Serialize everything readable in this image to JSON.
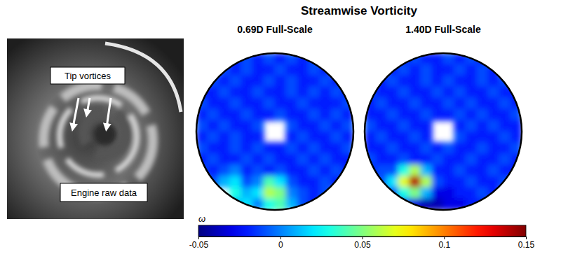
{
  "title": "Streamwise Vorticity",
  "photo": {
    "labels": [
      "Tip vortices",
      "Engine raw data"
    ]
  },
  "colorbar": {
    "label": "ω",
    "range": [
      -0.05,
      0.15
    ],
    "ticks": [
      -0.05,
      0,
      0.05,
      0.1,
      0.15
    ]
  },
  "chart_data": [
    {
      "type": "heatmap",
      "title": "0.69D Full-Scale",
      "cells": [
        [
          null,
          null,
          null,
          -0.02,
          -0.01,
          -0.02,
          -0.01,
          -0.02,
          -0.01,
          -0.02,
          -0.01,
          null,
          null,
          null
        ],
        [
          null,
          null,
          -0.01,
          -0.02,
          -0.01,
          -0.02,
          -0.02,
          -0.01,
          -0.02,
          -0.02,
          -0.01,
          -0.02,
          null,
          null
        ],
        [
          null,
          -0.01,
          -0.02,
          -0.01,
          -0.02,
          -0.02,
          -0.01,
          -0.02,
          -0.01,
          -0.02,
          -0.02,
          -0.01,
          -0.02,
          null
        ],
        [
          -0.02,
          -0.02,
          -0.01,
          -0.02,
          -0.02,
          -0.01,
          -0.02,
          -0.02,
          -0.01,
          -0.02,
          -0.01,
          -0.02,
          -0.01,
          -0.02
        ],
        [
          -0.01,
          -0.02,
          -0.02,
          -0.01,
          -0.02,
          -0.02,
          -0.01,
          -0.02,
          -0.02,
          -0.01,
          -0.02,
          -0.02,
          -0.02,
          -0.01
        ],
        [
          -0.02,
          -0.01,
          -0.02,
          -0.02,
          -0.01,
          -0.02,
          -0.02,
          -0.01,
          -0.02,
          -0.02,
          -0.01,
          -0.02,
          -0.01,
          -0.02
        ],
        [
          -0.01,
          -0.02,
          -0.01,
          -0.02,
          -0.02,
          -0.01,
          null,
          null,
          -0.01,
          -0.02,
          -0.02,
          -0.01,
          -0.02,
          -0.01
        ],
        [
          -0.02,
          -0.01,
          -0.02,
          -0.01,
          -0.02,
          -0.02,
          null,
          null,
          -0.02,
          -0.01,
          -0.02,
          -0.02,
          -0.01,
          -0.02
        ],
        [
          -0.01,
          -0.02,
          -0.02,
          -0.01,
          -0.02,
          -0.01,
          -0.02,
          -0.02,
          -0.01,
          -0.02,
          -0.01,
          -0.02,
          -0.02,
          -0.01
        ],
        [
          -0.02,
          -0.01,
          -0.02,
          -0.02,
          -0.01,
          -0.02,
          -0.01,
          -0.02,
          -0.02,
          -0.01,
          -0.02,
          -0.01,
          -0.02,
          -0.02
        ],
        [
          -0.01,
          -0.02,
          -0.01,
          0,
          -0.02,
          -0.01,
          -0.02,
          -0.01,
          -0.02,
          -0.02,
          -0.01,
          -0.02,
          -0.01,
          -0.02
        ],
        [
          null,
          -0.01,
          0.01,
          0.02,
          -0.01,
          0,
          0.04,
          0.02,
          -0.01,
          -0.02,
          -0.02,
          -0.01,
          -0.02,
          null
        ],
        [
          null,
          null,
          null,
          0.03,
          0.01,
          0.02,
          0.06,
          0.05,
          0,
          -0.01,
          -0.02,
          -0.01,
          null,
          null
        ],
        [
          null,
          null,
          null,
          0.01,
          0.02,
          0,
          0.03,
          0.04,
          0.01,
          -0.01,
          -0.02,
          null,
          null,
          null
        ]
      ]
    },
    {
      "type": "heatmap",
      "title": "1.40D Full-Scale",
      "cells": [
        [
          null,
          null,
          null,
          -0.02,
          -0.01,
          -0.02,
          -0.02,
          -0.01,
          -0.02,
          -0.01,
          -0.02,
          null,
          null,
          null
        ],
        [
          null,
          null,
          -0.02,
          -0.01,
          -0.02,
          -0.01,
          -0.02,
          -0.02,
          -0.01,
          -0.02,
          -0.01,
          -0.02,
          null,
          null
        ],
        [
          null,
          -0.02,
          -0.01,
          -0.02,
          -0.02,
          -0.01,
          -0.02,
          -0.01,
          -0.02,
          -0.02,
          -0.01,
          -0.02,
          -0.01,
          null
        ],
        [
          -0.01,
          -0.02,
          -0.02,
          -0.01,
          -0.02,
          -0.02,
          -0.01,
          -0.02,
          -0.01,
          -0.02,
          -0.02,
          -0.01,
          -0.02,
          -0.02
        ],
        [
          -0.02,
          -0.01,
          -0.02,
          -0.02,
          -0.01,
          -0.02,
          -0.02,
          -0.01,
          -0.02,
          -0.01,
          -0.02,
          -0.02,
          -0.01,
          -0.02
        ],
        [
          -0.02,
          -0.02,
          -0.01,
          -0.02,
          -0.02,
          -0.01,
          -0.02,
          -0.02,
          -0.01,
          -0.02,
          -0.01,
          -0.02,
          -0.02,
          -0.01
        ],
        [
          -0.01,
          -0.02,
          -0.02,
          -0.01,
          -0.02,
          -0.02,
          null,
          null,
          -0.02,
          -0.01,
          -0.02,
          -0.01,
          -0.02,
          -0.02
        ],
        [
          -0.02,
          -0.01,
          -0.02,
          -0.02,
          -0.01,
          -0.02,
          null,
          null,
          -0.01,
          -0.02,
          -0.02,
          -0.02,
          -0.01,
          -0.02
        ],
        [
          -0.02,
          -0.02,
          -0.01,
          -0.02,
          -0.02,
          -0.01,
          -0.02,
          -0.01,
          -0.02,
          -0.02,
          -0.01,
          -0.02,
          -0.02,
          -0.01
        ],
        [
          -0.01,
          -0.02,
          -0.02,
          -0.01,
          -0.02,
          -0.02,
          -0.01,
          -0.02,
          -0.02,
          -0.01,
          -0.02,
          -0.02,
          -0.01,
          -0.02
        ],
        [
          -0.02,
          -0.01,
          -0.01,
          0.03,
          0.06,
          0.01,
          -0.02,
          -0.02,
          -0.01,
          -0.02,
          -0.02,
          -0.01,
          -0.02,
          -0.02
        ],
        [
          null,
          -0.01,
          0.02,
          0.07,
          0.14,
          0.06,
          -0.01,
          -0.02,
          -0.02,
          -0.01,
          -0.02,
          -0.02,
          -0.01,
          null
        ],
        [
          null,
          null,
          -0.01,
          0.03,
          0.05,
          0.01,
          -0.03,
          -0.03,
          -0.02,
          -0.02,
          -0.01,
          -0.02,
          null,
          null
        ],
        [
          null,
          null,
          null,
          -0.02,
          -0.03,
          -0.04,
          -0.04,
          -0.03,
          -0.03,
          -0.02,
          -0.02,
          null,
          null,
          null
        ]
      ]
    }
  ]
}
